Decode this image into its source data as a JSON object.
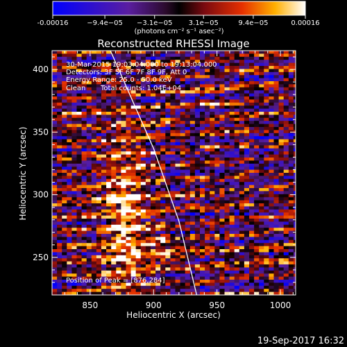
{
  "chart_data": {
    "type": "heatmap",
    "title": "Reconstructed RHESSI Image",
    "xlabel": "Heliocentric X (arcsec)",
    "ylabel": "Heliocentric Y (arcsec)",
    "xlim": [
      820,
      1012
    ],
    "ylim": [
      220,
      415
    ],
    "xticks": [
      850,
      900,
      950,
      1000
    ],
    "yticks": [
      250,
      300,
      350,
      400
    ],
    "colorbar": {
      "range": [
        -0.00016,
        0.00016
      ],
      "ticks": [
        {
          "value": -0.00016,
          "label": "-0.00016"
        },
        {
          "value": -9.4e-05,
          "label": "−9.4e−05"
        },
        {
          "value": -3.1e-05,
          "label": "−3.1e−05"
        },
        {
          "value": 3.1e-05,
          "label": "3.1e−05"
        },
        {
          "value": 9.4e-05,
          "label": "9.4e−05"
        },
        {
          "value": 0.00016,
          "label": "0.00016"
        }
      ],
      "label": "(photons cm⁻² s⁻¹ asec⁻²)"
    },
    "annotations": [
      "30-Mar-2015 19:03:04.000 to 19:13:04.000",
      "Detectors: 3F 5F 6F 7F 8F 9F, Att 0",
      "Energy Range: 25.0 - 50.0 keV",
      "Clean",
      "Total counts: 1.04E+04"
    ],
    "peak_label": "Position of Peak = [876,284]",
    "peak_position": [
      876,
      284
    ],
    "limb_curve": [
      [
        866,
        415
      ],
      [
        900,
        337
      ],
      [
        920,
        279
      ],
      [
        934,
        220
      ]
    ],
    "colors": {
      "background": "#000000",
      "limb": "#ffffff"
    }
  },
  "footer": {
    "timestamp": "19-Sep-2017 16:32"
  }
}
